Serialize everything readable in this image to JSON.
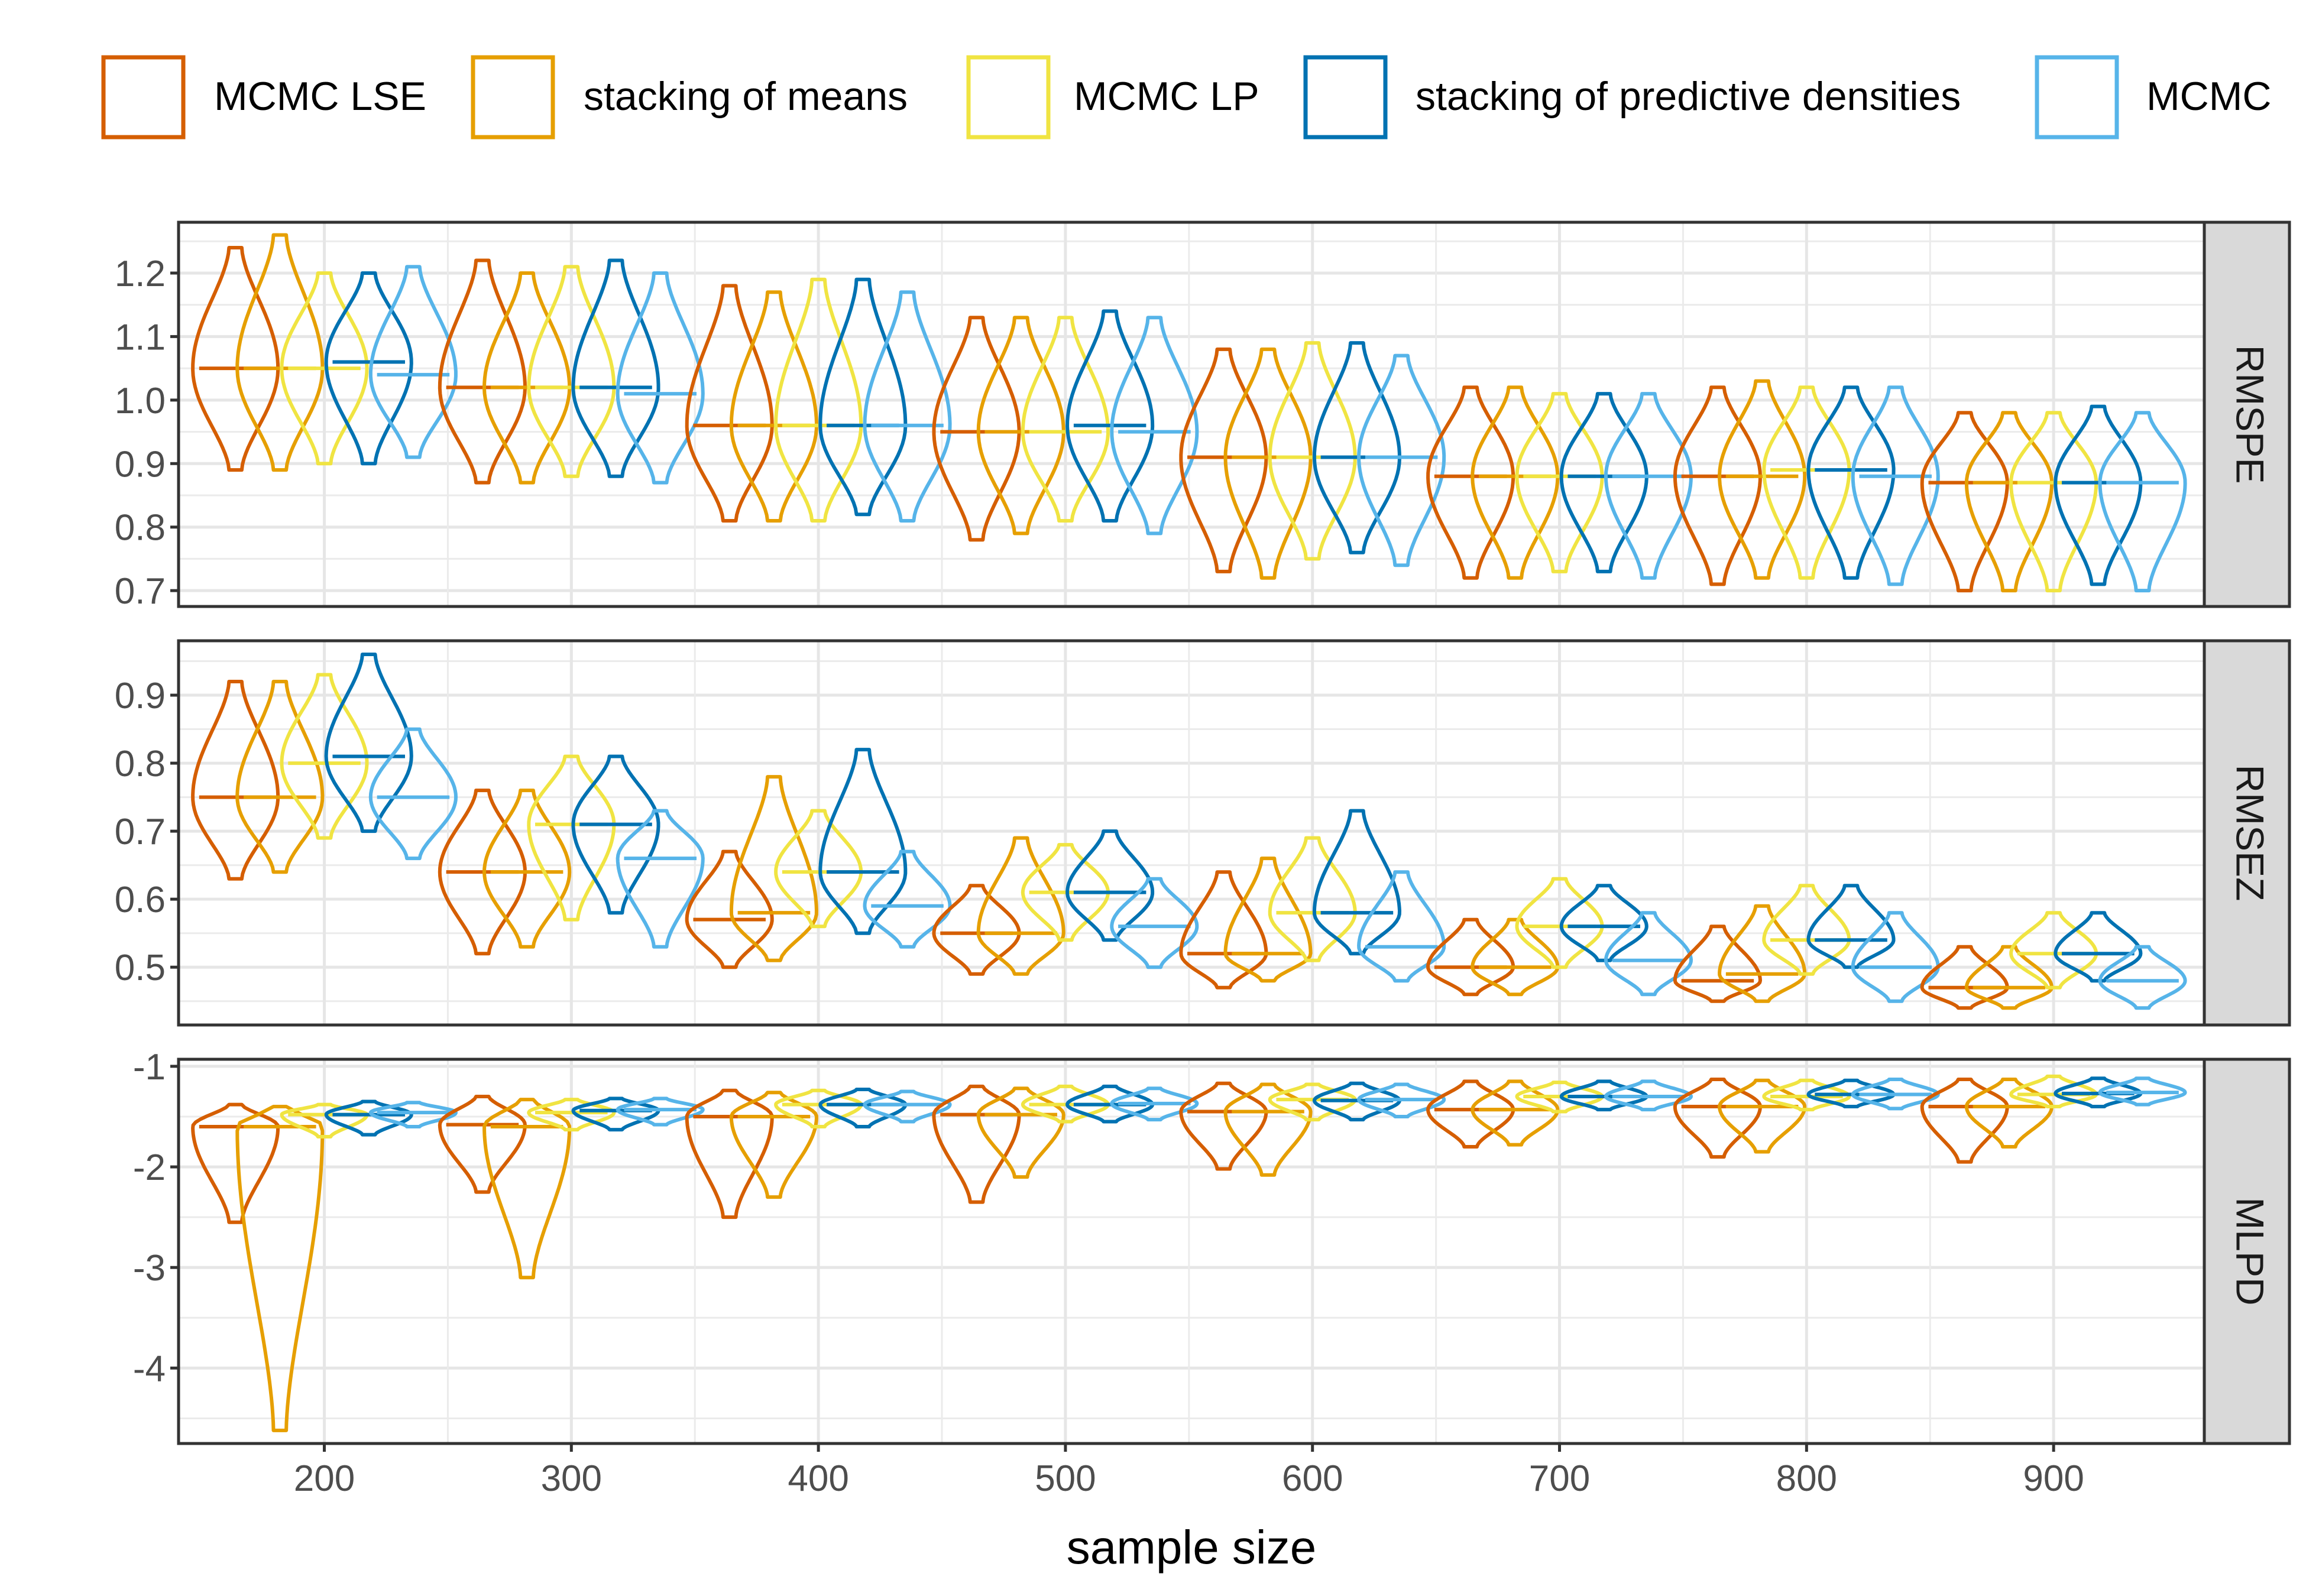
{
  "chart_data": {
    "type": "violin",
    "xlabel": "sample size",
    "x_ticks": [
      200,
      300,
      400,
      500,
      600,
      700,
      800,
      900
    ],
    "xlim": [
      141,
      961
    ],
    "group_offset": 18,
    "violin_half_width": 7.5,
    "legend_position": "top",
    "series": [
      {
        "name": "MCMC LSE",
        "color": "#d55e00"
      },
      {
        "name": "stacking of means",
        "color": "#e69f00"
      },
      {
        "name": "MCMC LP",
        "color": "#f0e442"
      },
      {
        "name": "stacking of predictive densities",
        "color": "#0072b2"
      },
      {
        "name": "MCMC",
        "color": "#56b4e9"
      }
    ],
    "sample_sizes": [
      200,
      300,
      400,
      500,
      600,
      700,
      800,
      900
    ],
    "panels": [
      {
        "label": "RMSPE",
        "ylim": [
          0.675,
          1.28
        ],
        "y_ticks": [
          0.7,
          0.8,
          0.9,
          1.0,
          1.1,
          1.2
        ],
        "y_tick_labels": [
          "0.7",
          "0.8",
          "0.9",
          "1.0",
          "1.1",
          "1.2"
        ],
        "violins": [
          [
            [
              0.89,
              1.05,
              1.24
            ],
            [
              0.89,
              1.05,
              1.26
            ],
            [
              0.9,
              1.05,
              1.2
            ],
            [
              0.9,
              1.06,
              1.2
            ],
            [
              0.91,
              1.04,
              1.21
            ]
          ],
          [
            [
              0.87,
              1.02,
              1.22
            ],
            [
              0.87,
              1.02,
              1.2
            ],
            [
              0.88,
              1.02,
              1.21
            ],
            [
              0.88,
              1.02,
              1.22
            ],
            [
              0.87,
              1.01,
              1.2
            ]
          ],
          [
            [
              0.81,
              0.96,
              1.18
            ],
            [
              0.81,
              0.96,
              1.17
            ],
            [
              0.81,
              0.96,
              1.19
            ],
            [
              0.82,
              0.96,
              1.19
            ],
            [
              0.81,
              0.96,
              1.17
            ]
          ],
          [
            [
              0.78,
              0.95,
              1.13
            ],
            [
              0.79,
              0.95,
              1.13
            ],
            [
              0.81,
              0.95,
              1.13
            ],
            [
              0.81,
              0.96,
              1.14
            ],
            [
              0.79,
              0.95,
              1.13
            ]
          ],
          [
            [
              0.73,
              0.91,
              1.08
            ],
            [
              0.72,
              0.91,
              1.08
            ],
            [
              0.75,
              0.91,
              1.09
            ],
            [
              0.76,
              0.91,
              1.09
            ],
            [
              0.74,
              0.91,
              1.07
            ]
          ],
          [
            [
              0.72,
              0.88,
              1.02
            ],
            [
              0.72,
              0.88,
              1.02
            ],
            [
              0.73,
              0.88,
              1.01
            ],
            [
              0.73,
              0.88,
              1.01
            ],
            [
              0.72,
              0.88,
              1.01
            ]
          ],
          [
            [
              0.71,
              0.88,
              1.02
            ],
            [
              0.72,
              0.88,
              1.03
            ],
            [
              0.72,
              0.89,
              1.02
            ],
            [
              0.72,
              0.89,
              1.02
            ],
            [
              0.71,
              0.88,
              1.02
            ]
          ],
          [
            [
              0.7,
              0.87,
              0.98
            ],
            [
              0.7,
              0.87,
              0.98
            ],
            [
              0.7,
              0.87,
              0.98
            ],
            [
              0.71,
              0.87,
              0.99
            ],
            [
              0.7,
              0.87,
              0.98
            ]
          ]
        ]
      },
      {
        "label": "RMSEZ",
        "ylim": [
          0.415,
          0.98
        ],
        "y_ticks": [
          0.5,
          0.6,
          0.7,
          0.8,
          0.9
        ],
        "y_tick_labels": [
          "0.5",
          "0.6",
          "0.7",
          "0.8",
          "0.9"
        ],
        "violins": [
          [
            [
              0.63,
              0.75,
              0.92
            ],
            [
              0.64,
              0.75,
              0.92
            ],
            [
              0.69,
              0.8,
              0.93
            ],
            [
              0.7,
              0.81,
              0.96
            ],
            [
              0.66,
              0.75,
              0.85
            ]
          ],
          [
            [
              0.52,
              0.64,
              0.76
            ],
            [
              0.53,
              0.64,
              0.76
            ],
            [
              0.57,
              0.71,
              0.81
            ],
            [
              0.58,
              0.71,
              0.81
            ],
            [
              0.53,
              0.66,
              0.73
            ]
          ],
          [
            [
              0.5,
              0.57,
              0.67
            ],
            [
              0.51,
              0.58,
              0.78
            ],
            [
              0.56,
              0.64,
              0.73
            ],
            [
              0.55,
              0.64,
              0.82
            ],
            [
              0.53,
              0.59,
              0.67
            ]
          ],
          [
            [
              0.49,
              0.55,
              0.62
            ],
            [
              0.49,
              0.55,
              0.69
            ],
            [
              0.54,
              0.61,
              0.68
            ],
            [
              0.54,
              0.61,
              0.7
            ],
            [
              0.5,
              0.56,
              0.63
            ]
          ],
          [
            [
              0.47,
              0.52,
              0.64
            ],
            [
              0.48,
              0.52,
              0.66
            ],
            [
              0.51,
              0.58,
              0.69
            ],
            [
              0.52,
              0.58,
              0.73
            ],
            [
              0.48,
              0.53,
              0.64
            ]
          ],
          [
            [
              0.46,
              0.5,
              0.57
            ],
            [
              0.46,
              0.5,
              0.57
            ],
            [
              0.5,
              0.56,
              0.63
            ],
            [
              0.51,
              0.56,
              0.62
            ],
            [
              0.46,
              0.51,
              0.58
            ]
          ],
          [
            [
              0.45,
              0.48,
              0.56
            ],
            [
              0.45,
              0.49,
              0.59
            ],
            [
              0.49,
              0.54,
              0.62
            ],
            [
              0.5,
              0.54,
              0.62
            ],
            [
              0.45,
              0.5,
              0.58
            ]
          ],
          [
            [
              0.44,
              0.47,
              0.53
            ],
            [
              0.44,
              0.47,
              0.53
            ],
            [
              0.47,
              0.52,
              0.58
            ],
            [
              0.48,
              0.52,
              0.58
            ],
            [
              0.44,
              0.48,
              0.53
            ]
          ]
        ]
      },
      {
        "label": "MLPD",
        "ylim": [
          -4.75,
          -0.93
        ],
        "y_ticks": [
          -4,
          -3,
          -2,
          -1
        ],
        "y_tick_labels": [
          "-4",
          "-3",
          "-2",
          "-1"
        ],
        "violins": [
          [
            [
              -2.55,
              -1.6,
              -1.38
            ],
            [
              -4.62,
              -1.6,
              -1.4
            ],
            [
              -1.7,
              -1.48,
              -1.38
            ],
            [
              -1.68,
              -1.48,
              -1.35
            ],
            [
              -1.6,
              -1.46,
              -1.36
            ]
          ],
          [
            [
              -2.25,
              -1.58,
              -1.3
            ],
            [
              -3.1,
              -1.6,
              -1.33
            ],
            [
              -1.63,
              -1.46,
              -1.33
            ],
            [
              -1.63,
              -1.44,
              -1.32
            ],
            [
              -1.58,
              -1.43,
              -1.32
            ]
          ],
          [
            [
              -2.5,
              -1.5,
              -1.24
            ],
            [
              -2.3,
              -1.5,
              -1.26
            ],
            [
              -1.6,
              -1.38,
              -1.24
            ],
            [
              -1.6,
              -1.38,
              -1.23
            ],
            [
              -1.55,
              -1.38,
              -1.25
            ]
          ],
          [
            [
              -2.35,
              -1.48,
              -1.2
            ],
            [
              -2.1,
              -1.48,
              -1.22
            ],
            [
              -1.55,
              -1.38,
              -1.2
            ],
            [
              -1.55,
              -1.38,
              -1.2
            ],
            [
              -1.53,
              -1.37,
              -1.22
            ]
          ],
          [
            [
              -2.02,
              -1.45,
              -1.17
            ],
            [
              -2.08,
              -1.45,
              -1.18
            ],
            [
              -1.53,
              -1.33,
              -1.18
            ],
            [
              -1.53,
              -1.34,
              -1.17
            ],
            [
              -1.5,
              -1.33,
              -1.18
            ]
          ],
          [
            [
              -1.8,
              -1.43,
              -1.15
            ],
            [
              -1.78,
              -1.43,
              -1.15
            ],
            [
              -1.45,
              -1.3,
              -1.16
            ],
            [
              -1.43,
              -1.3,
              -1.15
            ],
            [
              -1.43,
              -1.3,
              -1.15
            ]
          ],
          [
            [
              -1.9,
              -1.4,
              -1.13
            ],
            [
              -1.85,
              -1.4,
              -1.14
            ],
            [
              -1.43,
              -1.3,
              -1.14
            ],
            [
              -1.4,
              -1.28,
              -1.14
            ],
            [
              -1.42,
              -1.28,
              -1.13
            ]
          ],
          [
            [
              -1.95,
              -1.4,
              -1.13
            ],
            [
              -1.8,
              -1.4,
              -1.13
            ],
            [
              -1.4,
              -1.28,
              -1.1
            ],
            [
              -1.4,
              -1.27,
              -1.12
            ],
            [
              -1.38,
              -1.26,
              -1.12
            ]
          ]
        ]
      }
    ]
  }
}
